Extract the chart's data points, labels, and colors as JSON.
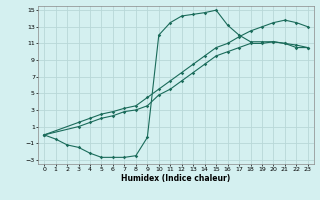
{
  "xlabel": "Humidex (Indice chaleur)",
  "xlim": [
    -0.5,
    23.5
  ],
  "ylim": [
    -3.5,
    15.5
  ],
  "xticks": [
    0,
    1,
    2,
    3,
    4,
    5,
    6,
    7,
    8,
    9,
    10,
    11,
    12,
    13,
    14,
    15,
    16,
    17,
    18,
    19,
    20,
    21,
    22,
    23
  ],
  "yticks": [
    -3,
    -1,
    1,
    3,
    5,
    7,
    9,
    11,
    13,
    15
  ],
  "bg_color": "#d4f0f0",
  "grid_color": "#b8d8d8",
  "line_color": "#1a6b5a",
  "line1_x": [
    0,
    1,
    2,
    3,
    4,
    5,
    6,
    7,
    8,
    9,
    10,
    11,
    12,
    13,
    14,
    15,
    16,
    17,
    18,
    19,
    20,
    21,
    22,
    23
  ],
  "line1_y": [
    0,
    -0.5,
    -1.2,
    -1.5,
    -2.2,
    -2.7,
    -2.7,
    -2.7,
    -2.5,
    -0.3,
    12.0,
    13.5,
    14.3,
    14.5,
    14.7,
    15.0,
    13.2,
    12.0,
    11.2,
    11.2,
    11.2,
    11.0,
    10.8,
    10.5
  ],
  "line2_x": [
    0,
    3,
    4,
    5,
    6,
    7,
    8,
    9,
    10,
    11,
    12,
    13,
    14,
    15,
    16,
    17,
    18,
    19,
    20,
    21,
    22,
    23
  ],
  "line2_y": [
    0,
    1.0,
    1.5,
    2.0,
    2.3,
    2.8,
    3.0,
    3.5,
    4.8,
    5.5,
    6.5,
    7.5,
    8.5,
    9.5,
    10.0,
    10.5,
    11.0,
    11.0,
    11.2,
    11.0,
    10.5,
    10.5
  ],
  "line3_x": [
    0,
    3,
    4,
    5,
    6,
    7,
    8,
    9,
    10,
    11,
    12,
    13,
    14,
    15,
    16,
    17,
    18,
    19,
    20,
    21,
    22,
    23
  ],
  "line3_y": [
    0,
    1.5,
    2.0,
    2.5,
    2.8,
    3.2,
    3.5,
    4.5,
    5.5,
    6.5,
    7.5,
    8.5,
    9.5,
    10.5,
    11.0,
    11.8,
    12.5,
    13.0,
    13.5,
    13.8,
    13.5,
    13.0
  ]
}
